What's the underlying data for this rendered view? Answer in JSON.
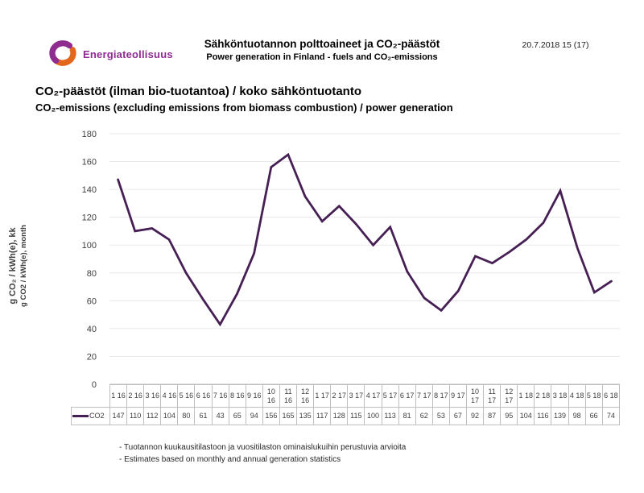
{
  "header": {
    "brand": "Energiateollisuus",
    "title_fi": "Sähköntuotannon polttoaineet ja CO₂-päästöt",
    "title_en": "Power generation in Finland - fuels and CO₂-emissions",
    "date_page": "20.7.2018  15 (17)"
  },
  "section": {
    "title_fi": "CO₂-päästöt (ilman bio-tuotantoa) / koko sähköntuotanto",
    "title_en": "CO₂-emissions (excluding emissions from biomass combustion) / power generation"
  },
  "chart_data": {
    "type": "line",
    "series_name": "CO2",
    "categories": [
      "1 16",
      "2 16",
      "3 16",
      "4 16",
      "5 16",
      "6 16",
      "7 16",
      "8 16",
      "9 16",
      "10 16",
      "11 16",
      "12 16",
      "1 17",
      "2 17",
      "3 17",
      "4 17",
      "5 17",
      "6 17",
      "7 17",
      "8 17",
      "9 17",
      "10 17",
      "11 17",
      "12 17",
      "1 18",
      "2 18",
      "3 18",
      "4 18",
      "5 18",
      "6 18"
    ],
    "values": [
      147,
      110,
      112,
      104,
      80,
      61,
      43,
      65,
      94,
      156,
      165,
      135,
      117,
      128,
      115,
      100,
      113,
      81,
      62,
      53,
      67,
      92,
      87,
      95,
      104,
      116,
      139,
      98,
      66,
      74
    ],
    "ylabel_line1": "g CO₂ / kWh(e), kk",
    "ylabel_line2": "g CO2 / kWh(e), month",
    "ylim": [
      0,
      180
    ],
    "ytick_step": 20,
    "grid": true,
    "legend_position": "left-of-data-table",
    "line_color": "#461f54"
  },
  "colors": {
    "brand_purple": "#8e2c90",
    "brand_orange": "#e2671d",
    "grid_line": "#e9e9e9",
    "axis_line": "#bfbfbf",
    "table_border": "#bfbfbf"
  },
  "footnotes": {
    "line1": "- Tuotannon kuukausitilastoon ja vuositilaston ominaislukuihin perustuvia arvioita",
    "line2": "- Estimates based on monthly and annual generation statistics"
  }
}
